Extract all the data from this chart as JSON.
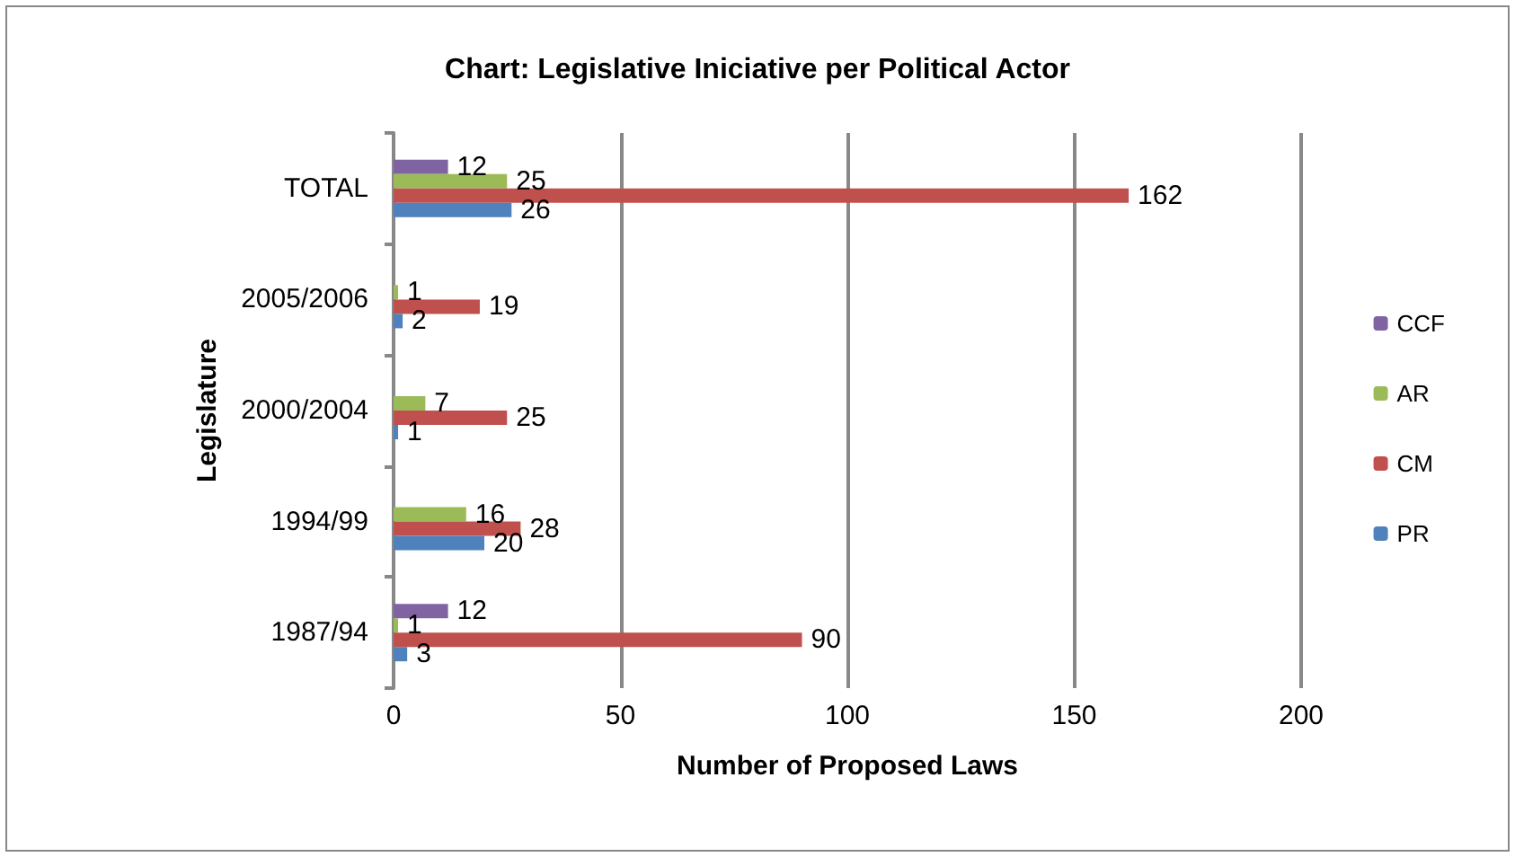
{
  "chart_data": {
    "type": "bar",
    "orientation": "horizontal",
    "title": "Chart: Legislative Iniciative per Political Actor",
    "xlabel": "Number of Proposed Laws",
    "ylabel": "Legislature",
    "categories": [
      "TOTAL",
      "2005/2006",
      "2000/2004",
      "1994/99",
      "1987/94"
    ],
    "series": [
      {
        "name": "CCF",
        "color": "#8064a2",
        "values": [
          12,
          null,
          null,
          null,
          12
        ]
      },
      {
        "name": "AR",
        "color": "#9bbb59",
        "values": [
          25,
          1,
          7,
          16,
          1
        ]
      },
      {
        "name": "CM",
        "color": "#c0504d",
        "values": [
          162,
          19,
          25,
          28,
          90
        ]
      },
      {
        "name": "PR",
        "color": "#4f81bd",
        "values": [
          26,
          2,
          1,
          20,
          3
        ]
      }
    ],
    "xlim": [
      0,
      200
    ],
    "xticks": [
      0,
      50,
      100,
      150,
      200
    ],
    "grid": "x",
    "legend": "right",
    "data_labels": true
  }
}
